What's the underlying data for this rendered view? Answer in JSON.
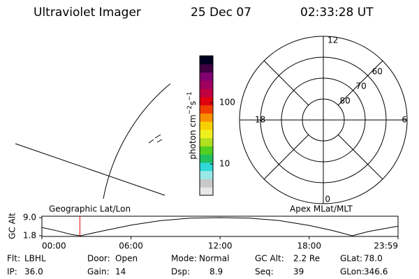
{
  "header": {
    "instrument": "Ultraviolet Imager",
    "date": "25 Dec 07",
    "time": "02:33:28 UT"
  },
  "colorbar": {
    "label": [
      "photon cm",
      "−2",
      "s",
      "−1"
    ],
    "log": true,
    "clim": [
      3.1,
      577
    ],
    "ticks": [
      10,
      100
    ],
    "colors": [
      "#e8e8e8",
      "#c8c8c8",
      "#9be8e8",
      "#30d8d8",
      "#20c060",
      "#50d020",
      "#b0e020",
      "#f0f020",
      "#f8d000",
      "#f89000",
      "#f04000",
      "#e00010",
      "#c00040",
      "#a00060",
      "#800070",
      "#400040",
      "#000020"
    ]
  },
  "polar": {
    "rlim": [
      90,
      50
    ],
    "ring_ticks": [
      80,
      70,
      60
    ],
    "hour_labels": [
      12,
      6,
      0,
      18
    ]
  },
  "altitude_plot": {
    "left_label": "Geographic Lat/Lon",
    "right_label": "Apex MLat/MLT",
    "ylabel": "GC Alt",
    "xlim": [
      0,
      23.9833
    ],
    "ylim": [
      1.8,
      9.0
    ],
    "yticks": [
      {
        "value": 9.0,
        "label": "9.0"
      },
      {
        "value": 1.8,
        "label": "1.8"
      }
    ],
    "xticks": [
      {
        "value": 0,
        "label": "00:00"
      },
      {
        "value": 6,
        "label": "06:00"
      },
      {
        "value": 12,
        "label": "12:00"
      },
      {
        "value": 18,
        "label": "18:00"
      },
      {
        "value": 23.9833,
        "label": "23:59"
      }
    ],
    "x": [
      0,
      1,
      2,
      2.6,
      4,
      6,
      8,
      10,
      12,
      14,
      16,
      18,
      19.5,
      20.9,
      22,
      24
    ],
    "values": [
      5.1,
      3.8,
      2.3,
      1.8,
      3.6,
      6.0,
      7.8,
      8.8,
      9.0,
      8.8,
      7.8,
      5.9,
      4.0,
      1.8,
      3.5,
      5.6
    ],
    "marker_time": 2.558,
    "marker_color": "#e00000"
  },
  "info": [
    [
      {
        "label": "Flt:",
        "value": "LBHL"
      },
      {
        "label": "Door:",
        "value": "Open"
      },
      {
        "label": "Mode:",
        "value": "Normal"
      },
      {
        "label": "GC Alt:",
        "value": "2.2 Re"
      },
      {
        "label": "GLat:",
        "value": "78.0"
      }
    ],
    [
      {
        "label": "IP:",
        "value": "36.0"
      },
      {
        "label": "Gain:",
        "value": "14"
      },
      {
        "label": "Dsp:",
        "value": "8.9"
      },
      {
        "label": "Seq:",
        "value": "39"
      },
      {
        "label": "GLon:",
        "value": "346.6"
      }
    ]
  ]
}
